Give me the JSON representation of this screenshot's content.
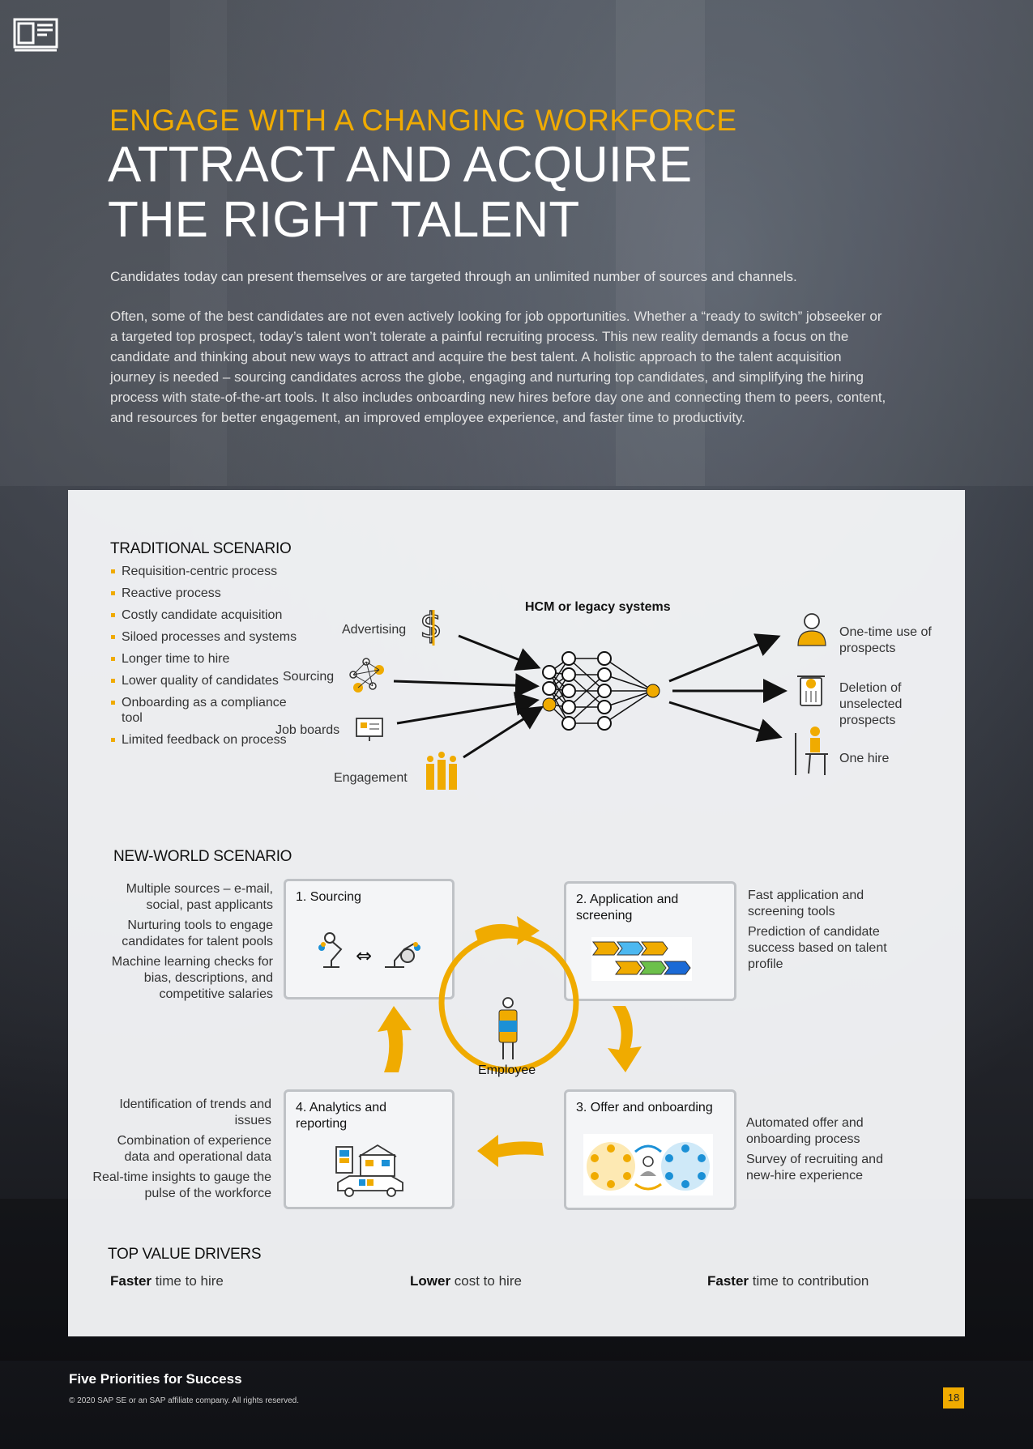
{
  "header": {
    "kicker": "ENGAGE WITH A CHANGING WORKFORCE",
    "title_line1": "ATTRACT AND ACQUIRE",
    "title_line2": "THE RIGHT TALENT"
  },
  "intro": {
    "lead": "Candidates today can present themselves or are targeted through an unlimited number of sources and channels.",
    "body": "Often, some of the best candidates are not even actively looking for job opportunities. Whether a “ready to switch” jobseeker or a targeted top prospect, today’s talent won’t tolerate a painful recruiting process. This new reality demands a focus on the candidate and thinking about new ways to attract and acquire the best talent. A holistic approach to the talent acquisition journey is needed – sourcing candidates across the globe, engaging and nurturing top candidates, and simplifying the hiring process with state-of-the-art tools. It also includes onboarding new hires before day one and connecting them to peers, content, and resources for better engagement, an improved employee experience, and faster time to productivity."
  },
  "traditional": {
    "heading": "TRADITIONAL SCENARIO",
    "bullets": [
      "Requisition-centric process",
      "Reactive process",
      "Costly candidate acquisition",
      "Siloed processes and systems",
      "Longer time to hire",
      "Lower quality of candidates",
      "Onboarding as a compliance tool",
      "Limited feedback on process"
    ],
    "inputs": [
      "Advertising",
      "Sourcing",
      "Job boards",
      "Engagement"
    ],
    "hub_label": "HCM or legacy systems",
    "outputs": [
      "One-time use of prospects",
      "Deletion of unselected prospects",
      "One hire"
    ]
  },
  "new_world": {
    "heading": "NEW-WORLD SCENARIO",
    "center_label": "Employee",
    "steps": [
      {
        "title": "1. Sourcing"
      },
      {
        "title": "2. Application and screening"
      },
      {
        "title": "3. Offer and onboarding"
      },
      {
        "title": "4. Analytics and reporting"
      }
    ],
    "sourcing_notes": [
      "Multiple sources – e-mail, social, past applicants",
      "Nurturing tools to engage candidates for talent pools",
      "Machine learning checks for bias, descriptions, and competitive salaries"
    ],
    "application_notes": [
      "Fast application and screening tools",
      "Prediction of candidate success based on talent profile"
    ],
    "offer_notes": [
      "Automated offer and onboarding process",
      "Survey of recruiting and new-hire experience"
    ],
    "analytics_notes": [
      "Identification of trends and issues",
      "Combination of experience data and operational data",
      "Real-time insights to gauge the pulse of the workforce"
    ]
  },
  "value_drivers": {
    "heading": "TOP VALUE DRIVERS",
    "items": [
      {
        "bold": "Faster",
        "rest": " time to hire"
      },
      {
        "bold": "Lower",
        "rest": " cost to hire"
      },
      {
        "bold": "Faster",
        "rest": " time to contribution"
      }
    ]
  },
  "footer": {
    "title": "Five Priorities for Success",
    "copyright": "© 2020 SAP SE or an SAP affiliate company. All rights reserved.",
    "page_number": "18"
  },
  "colors": {
    "accent": "#f0ab00",
    "blue": "#1b90d6",
    "green": "#6cc04a",
    "panel": "#f4f5f7"
  }
}
